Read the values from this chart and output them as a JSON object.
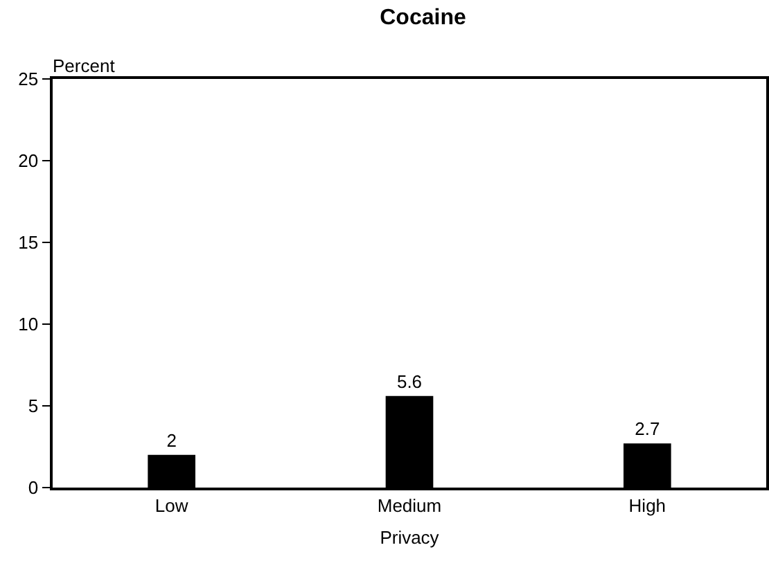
{
  "chart_data": {
    "type": "bar",
    "title": "Cocaine",
    "xlabel": "Privacy",
    "ylabel": "Percent",
    "categories": [
      "Low",
      "Medium",
      "High"
    ],
    "values": [
      2,
      5.6,
      2.7
    ],
    "color": "#000000",
    "ylim": [
      0,
      25
    ],
    "yticks": [
      0,
      5,
      10,
      15,
      20,
      25
    ],
    "data_labels": true
  }
}
